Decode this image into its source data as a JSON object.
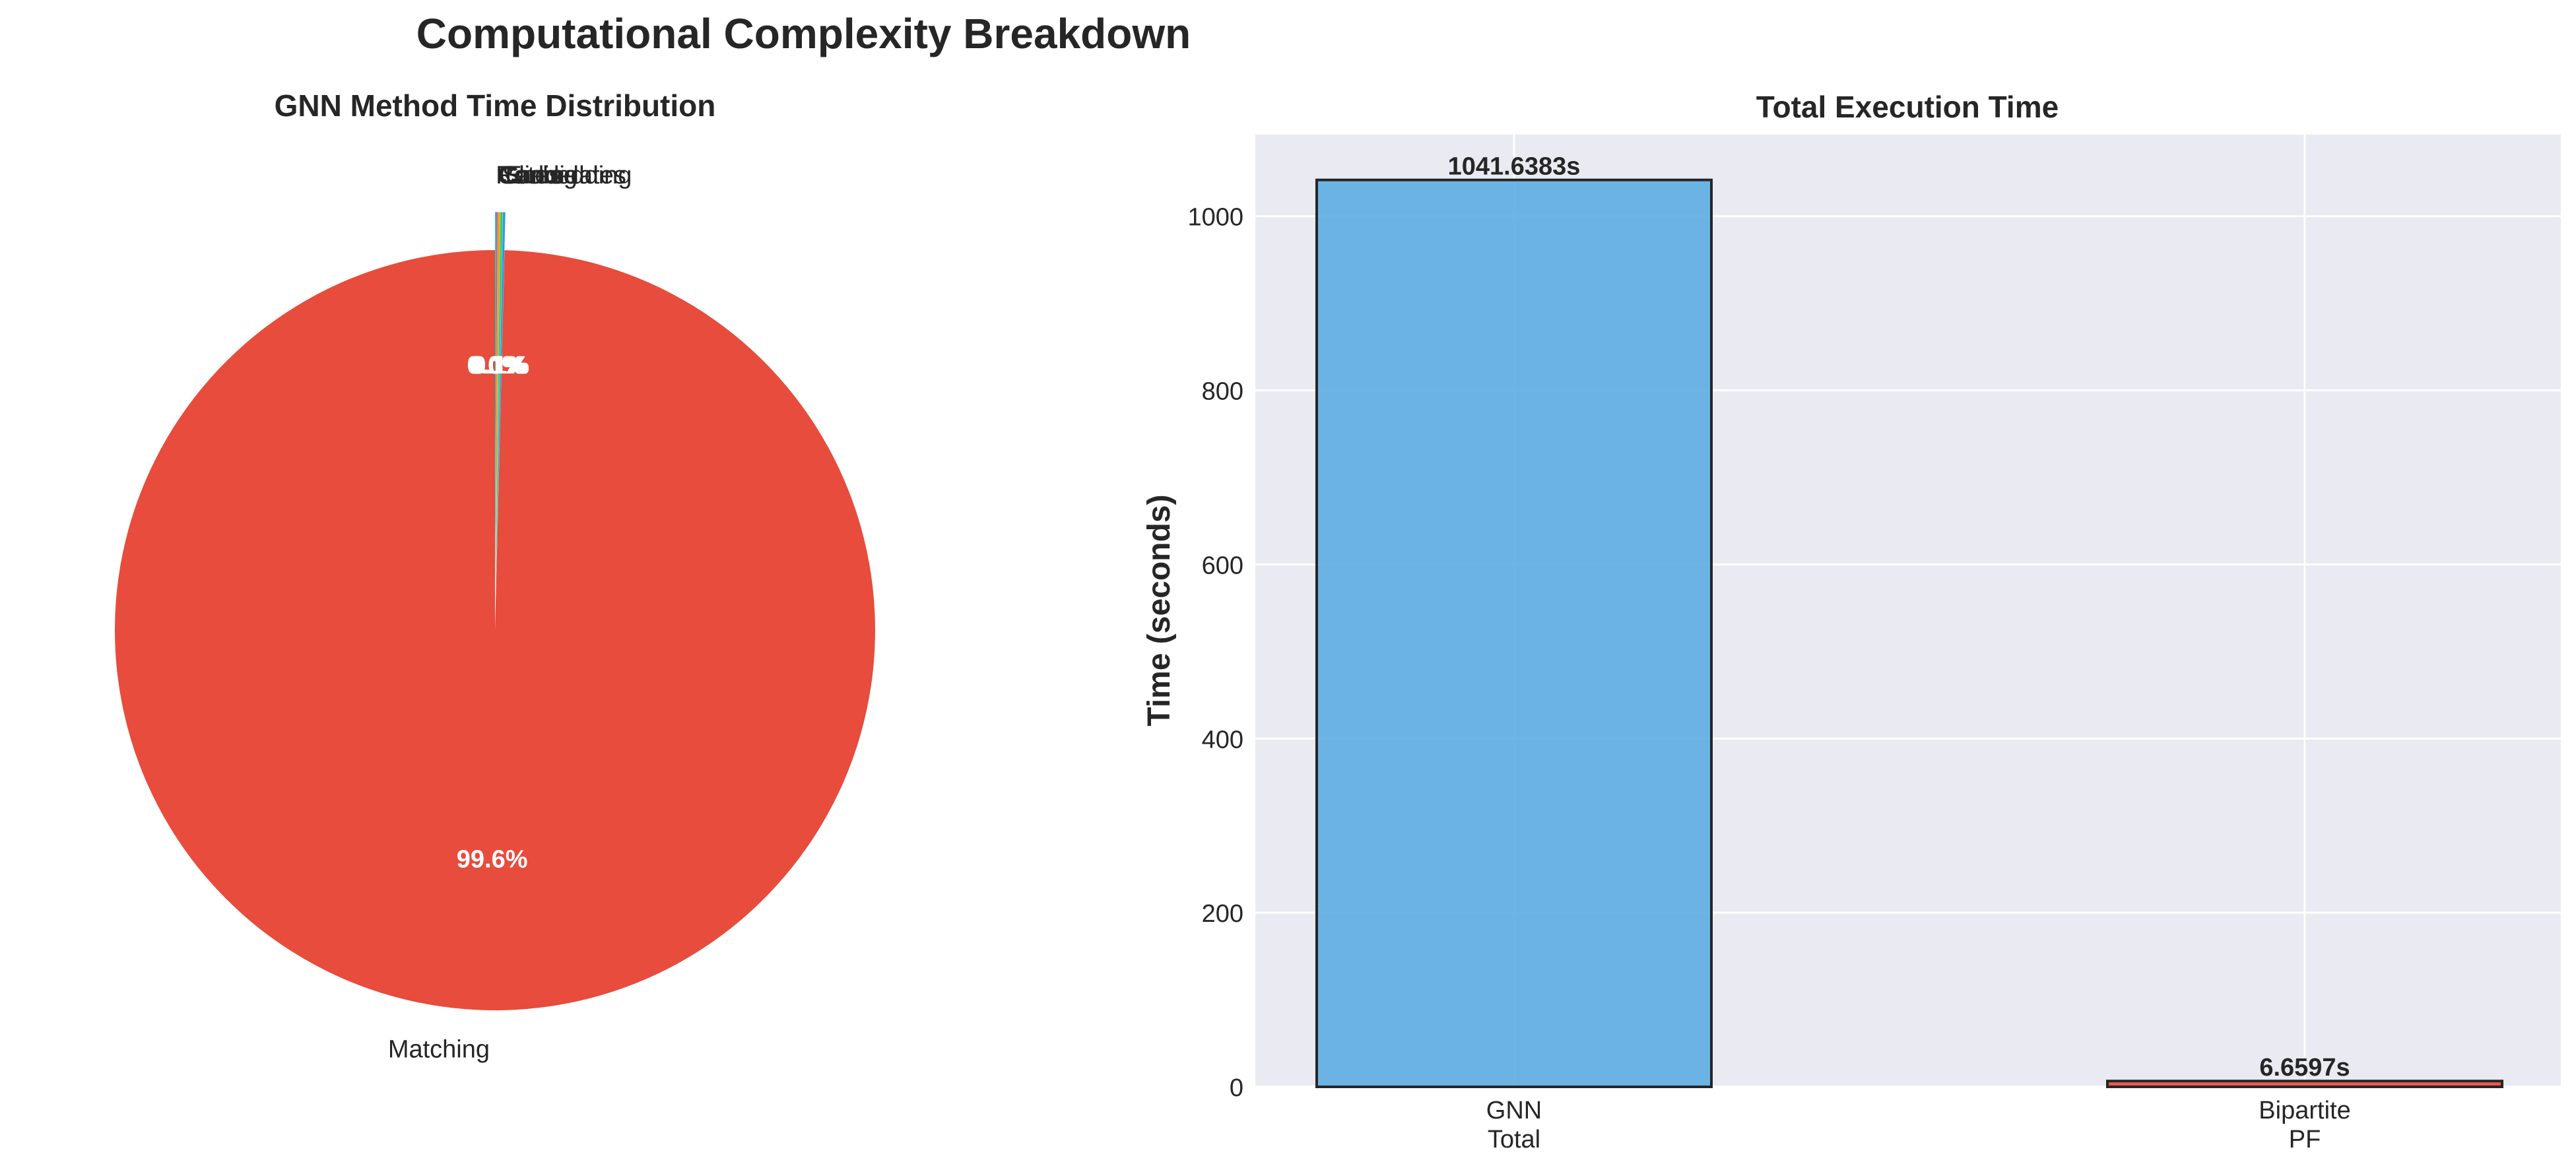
{
  "figure": {
    "title": "Computational Complexity Breakdown"
  },
  "chart_data": [
    {
      "type": "pie",
      "title": "GNN Method Time Distribution",
      "labels": [
        "Matching",
        "Embedding",
        "Sliding",
        "Candidates",
        "Coarse",
        "Rates"
      ],
      "values": [
        99.6,
        0.1,
        0.1,
        0.1,
        0.05,
        0.05
      ],
      "autopct_labels": [
        "99.6%",
        "0.1%",
        "0.1%",
        "0.1%",
        "0.0%",
        "0.0%"
      ],
      "colors": [
        "#e74c3c",
        "#3498db",
        "#2ecc71",
        "#f39c12",
        "#9b59b6",
        "#1abc9c"
      ],
      "start_angle_deg": 90,
      "explode_small_slices": true
    },
    {
      "type": "bar",
      "title": "Total Execution Time",
      "ylabel": "Time (seconds)",
      "xlabel": "",
      "categories": [
        [
          "GNN",
          "Total"
        ],
        [
          "Bipartite",
          "PF"
        ]
      ],
      "values": [
        1041.6383,
        6.6597
      ],
      "value_labels": [
        "1041.6383s",
        "6.6597s"
      ],
      "colors": [
        "#5dade2",
        "#e74c3c"
      ],
      "ylim": [
        0,
        1093.7
      ],
      "yticks": [
        0,
        200,
        400,
        600,
        800,
        1000
      ],
      "ytick_labels": [
        "0",
        "200",
        "400",
        "600",
        "800",
        "1000"
      ],
      "grid": true,
      "background": "#eaeaf2"
    }
  ]
}
